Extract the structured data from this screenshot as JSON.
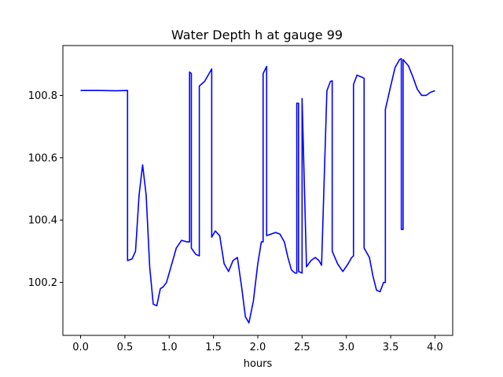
{
  "chart_data": {
    "type": "line",
    "title": "Water Depth h at gauge 99",
    "xlabel": "hours",
    "ylabel": "",
    "xlim": [
      -0.2,
      4.2
    ],
    "ylim": [
      100.03,
      100.96
    ],
    "grid": false,
    "legend": "none",
    "x_ticks": [
      0.0,
      0.5,
      1.0,
      1.5,
      2.0,
      2.5,
      3.0,
      3.5,
      4.0
    ],
    "x_tick_labels": [
      "0.0",
      "0.5",
      "1.0",
      "1.5",
      "2.0",
      "2.5",
      "3.0",
      "3.5",
      "4.0"
    ],
    "y_ticks": [
      100.2,
      100.4,
      100.6,
      100.8
    ],
    "y_tick_labels": [
      "100.2",
      "100.4",
      "100.6",
      "100.8"
    ],
    "series": [
      {
        "color": "#0000ff",
        "x": [
          0.0,
          0.2,
          0.4,
          0.53,
          0.53,
          0.58,
          0.62,
          0.66,
          0.7,
          0.74,
          0.78,
          0.82,
          0.86,
          0.9,
          0.93,
          0.97,
          1.02,
          1.08,
          1.14,
          1.2,
          1.23,
          1.23,
          1.25,
          1.25,
          1.3,
          1.34,
          1.34,
          1.4,
          1.48,
          1.48,
          1.52,
          1.57,
          1.62,
          1.67,
          1.72,
          1.77,
          1.82,
          1.86,
          1.9,
          1.95,
          2.0,
          2.04,
          2.06,
          2.06,
          2.1,
          2.1,
          2.15,
          2.2,
          2.25,
          2.3,
          2.34,
          2.38,
          2.42,
          2.44,
          2.44,
          2.46,
          2.46,
          2.5,
          2.5,
          2.55,
          2.6,
          2.65,
          2.69,
          2.72,
          2.72,
          2.78,
          2.82,
          2.84,
          2.84,
          2.9,
          2.96,
          3.02,
          3.06,
          3.08,
          3.08,
          3.12,
          3.18,
          3.2,
          3.2,
          3.26,
          3.3,
          3.34,
          3.38,
          3.42,
          3.44,
          3.44,
          3.5,
          3.55,
          3.6,
          3.62,
          3.62,
          3.64,
          3.64,
          3.7,
          3.75,
          3.8,
          3.85,
          3.9,
          3.95,
          4.0
        ],
        "y": [
          100.816,
          100.816,
          100.815,
          100.816,
          100.27,
          100.275,
          100.3,
          100.48,
          100.577,
          100.48,
          100.25,
          100.13,
          100.125,
          100.18,
          100.185,
          100.2,
          100.25,
          100.31,
          100.335,
          100.33,
          100.33,
          100.875,
          100.87,
          100.31,
          100.29,
          100.285,
          100.83,
          100.845,
          100.885,
          100.345,
          100.365,
          100.35,
          100.26,
          100.235,
          100.27,
          100.28,
          100.18,
          100.09,
          100.07,
          100.14,
          100.26,
          100.33,
          100.33,
          100.87,
          100.893,
          100.35,
          100.355,
          100.36,
          100.355,
          100.33,
          100.28,
          100.24,
          100.23,
          100.23,
          100.775,
          100.775,
          100.235,
          100.23,
          100.79,
          100.25,
          100.27,
          100.28,
          100.27,
          100.255,
          100.255,
          100.815,
          100.845,
          100.847,
          100.3,
          100.26,
          100.235,
          100.26,
          100.28,
          100.285,
          100.835,
          100.865,
          100.858,
          100.855,
          100.31,
          100.28,
          100.22,
          100.175,
          100.17,
          100.2,
          100.2,
          100.755,
          100.83,
          100.89,
          100.915,
          100.918,
          100.37,
          100.37,
          100.915,
          100.895,
          100.86,
          100.82,
          100.8,
          100.8,
          100.81,
          100.815
        ]
      }
    ]
  }
}
